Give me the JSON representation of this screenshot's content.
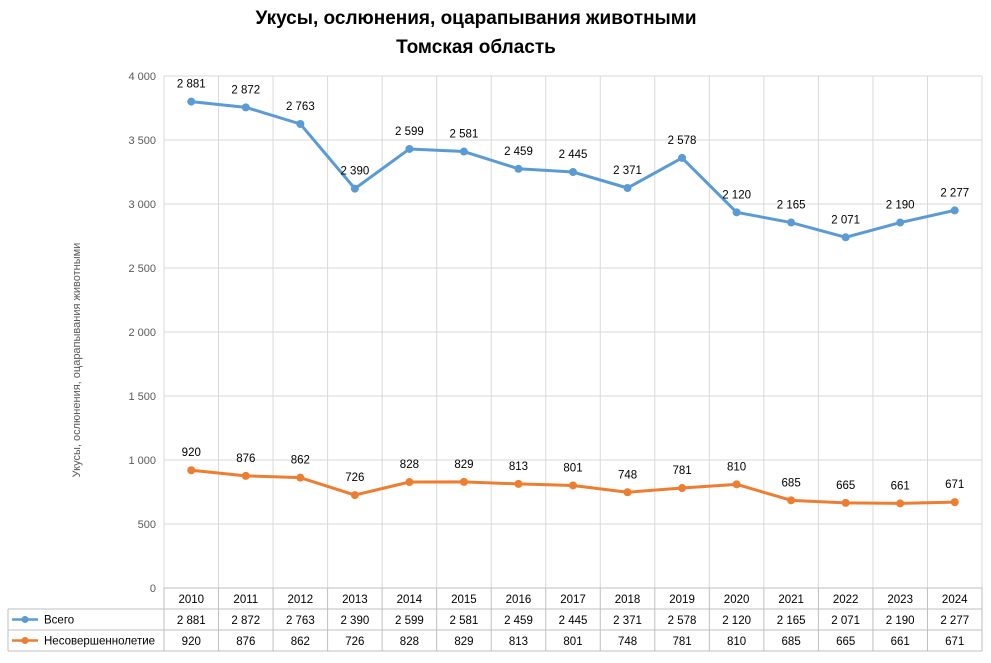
{
  "chart_data": {
    "type": "line",
    "title": "Укусы, ослюнения, оцарапывания животными",
    "subtitle": "Томская область",
    "ylabel": "Укусы, ослюнения, оцарапывания животными",
    "ylim": [
      0,
      4000
    ],
    "yticks": [
      0,
      500,
      1000,
      1500,
      2000,
      2500,
      3000,
      3500,
      4000
    ],
    "ytick_labels": [
      "0",
      "500",
      "1 000",
      "1 500",
      "2 000",
      "2 500",
      "3 000",
      "3 500",
      "4 000"
    ],
    "categories": [
      "2010",
      "2011",
      "2012",
      "2013",
      "2014",
      "2015",
      "2016",
      "2017",
      "2018",
      "2019",
      "2020",
      "2021",
      "2022",
      "2023",
      "2024"
    ],
    "grid": true,
    "legend": "data-table",
    "series": [
      {
        "name": "Всего",
        "color": "#5b9bd5",
        "values": [
          2881,
          2872,
          2763,
          2390,
          2599,
          2581,
          2459,
          2445,
          2371,
          2578,
          2120,
          2165,
          2071,
          2190,
          2277
        ],
        "labels": [
          "2 881",
          "2 872",
          "2 763",
          "2 390",
          "2 599",
          "2 581",
          "2 459",
          "2 445",
          "2 371",
          "2 578",
          "2 120",
          "2 165",
          "2 071",
          "2 190",
          "2 277"
        ],
        "plot_y": [
          3800,
          3755,
          3625,
          3120,
          3430,
          3410,
          3275,
          3250,
          3125,
          3360,
          2935,
          2855,
          2740,
          2855,
          2950
        ]
      },
      {
        "name": "Несовершеннолетие",
        "color": "#ed7d31",
        "values": [
          920,
          876,
          862,
          726,
          828,
          829,
          813,
          801,
          748,
          781,
          810,
          685,
          665,
          661,
          671
        ],
        "labels": [
          "920",
          "876",
          "862",
          "726",
          "828",
          "829",
          "813",
          "801",
          "748",
          "781",
          "810",
          "685",
          "665",
          "661",
          "671"
        ]
      }
    ]
  }
}
